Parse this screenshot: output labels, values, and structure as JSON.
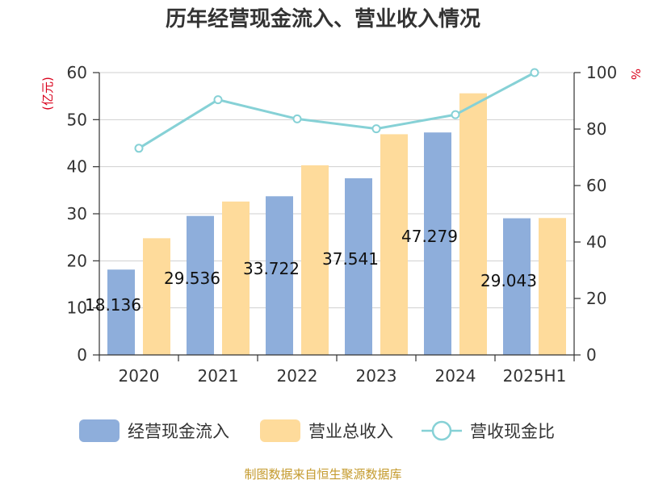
{
  "chart_data": {
    "type": "bar",
    "title": "历年经营现金流入、营业收入情况",
    "categories": [
      "2020",
      "2021",
      "2022",
      "2023",
      "2024",
      "2025H1"
    ],
    "y_left": {
      "unit": "(亿元)",
      "ylim": [
        0,
        60
      ],
      "ticks": [
        "0",
        "10",
        "20",
        "30",
        "40",
        "50",
        "60"
      ]
    },
    "y_right": {
      "unit": "%",
      "ylim": [
        0,
        100
      ],
      "ticks": [
        "0",
        "20",
        "40",
        "60",
        "80",
        "100"
      ]
    },
    "series": [
      {
        "name": "经营现金流入",
        "kind": "bar",
        "axis": "left",
        "color": "#8eaedb",
        "values": [
          18.136,
          29.536,
          33.722,
          37.541,
          47.279,
          29.043
        ],
        "labels": [
          "18.136",
          "29.536",
          "33.722",
          "37.541",
          "47.279",
          "29.043"
        ]
      },
      {
        "name": "营业总收入",
        "kind": "bar",
        "axis": "left",
        "color": "#fedb9b",
        "values": [
          24.8,
          32.6,
          40.3,
          46.9,
          55.6,
          29.1
        ]
      },
      {
        "name": "营收现金比",
        "kind": "line",
        "axis": "right",
        "color": "#86d1d6",
        "values": [
          73.2,
          90.4,
          83.6,
          80.1,
          85.1,
          100.0
        ]
      }
    ],
    "grid": true,
    "legend_position": "bottom"
  },
  "source": "制图数据来自恒生聚源数据库"
}
